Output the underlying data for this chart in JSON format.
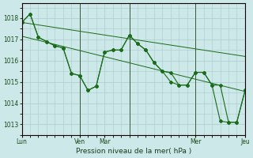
{
  "background_color": "#cce8e8",
  "grid_color": "#aacaca",
  "line_color": "#1a6b1a",
  "marker_color": "#1a6b1a",
  "xlabel": "Pression niveau de la mer( hPa )",
  "ylim": [
    1012.5,
    1018.7
  ],
  "yticks": [
    1013,
    1014,
    1015,
    1016,
    1017,
    1018
  ],
  "series1_x": [
    0,
    1,
    2,
    3,
    4,
    5,
    6,
    7,
    8,
    9,
    10,
    11,
    12,
    13,
    14,
    15,
    16,
    17,
    18,
    19,
    20,
    21,
    22,
    23,
    24,
    25,
    26,
    27
  ],
  "series1_y": [
    1017.8,
    1018.2,
    1017.1,
    1016.9,
    1016.7,
    1016.6,
    1015.4,
    1015.3,
    1014.6,
    1014.8,
    1016.4,
    1016.5,
    1016.5,
    1017.2,
    1016.8,
    1016.5,
    1015.9,
    1015.5,
    1015.45,
    1014.85,
    1014.85,
    1015.45,
    1015.45,
    1014.85,
    1014.85,
    1013.1,
    1013.1,
    1014.6
  ],
  "series2_x": [
    0,
    1,
    2,
    3,
    4,
    5,
    6,
    7,
    8,
    9,
    10,
    11,
    12,
    13,
    14,
    15,
    16,
    17,
    18,
    19,
    20,
    21,
    22,
    23,
    24,
    25,
    26,
    27
  ],
  "series2_y": [
    1017.8,
    1018.2,
    1017.1,
    1016.9,
    1016.7,
    1016.6,
    1015.4,
    1015.3,
    1014.6,
    1014.8,
    1016.4,
    1016.5,
    1016.5,
    1017.2,
    1016.8,
    1016.5,
    1015.9,
    1015.5,
    1015.0,
    1014.85,
    1014.85,
    1015.45,
    1015.45,
    1014.85,
    1013.15,
    1013.1,
    1013.1,
    1014.6
  ],
  "trend1_x": [
    0,
    27
  ],
  "trend1_y": [
    1017.8,
    1016.2
  ],
  "trend2_x": [
    0,
    27
  ],
  "trend2_y": [
    1017.15,
    1014.55
  ],
  "xtick_positions": [
    0,
    7,
    14,
    21,
    27
  ],
  "xtick_labels": [
    "Lun",
    "Ven Mar",
    "",
    "Mer",
    "Jeu"
  ],
  "vlines_x": [
    7,
    13,
    21
  ],
  "figsize": [
    3.2,
    2.0
  ],
  "dpi": 100
}
